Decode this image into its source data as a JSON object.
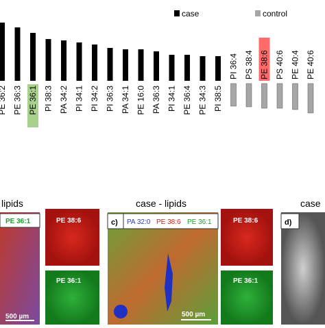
{
  "chart_data": {
    "type": "bar",
    "categories": [
      "PE 36:2",
      "PE 36:3",
      "PE 36:1",
      "PI 38:3",
      "PA 34:2",
      "PI 34:1",
      "PI 34:2",
      "PI 36:3",
      "PA 34:1",
      "PE 16:0",
      "PA 36:3",
      "PI 34:1",
      "PE 36:4",
      "PE 34:3",
      "PI 38:5",
      "PI 36:4",
      "PS 38:4",
      "PE 38:6",
      "PS 40:6",
      "PE 40:4",
      "PE 40:6"
    ],
    "series": [
      {
        "name": "case",
        "color": "#000000",
        "values": [
          85,
          78,
          70,
          61,
          59,
          56,
          53,
          48,
          46,
          46,
          43,
          38,
          38,
          36,
          36,
          null,
          null,
          null,
          null,
          null,
          null
        ]
      },
      {
        "name": "control",
        "color": "#a6a6a6",
        "values": [
          null,
          null,
          null,
          null,
          null,
          null,
          null,
          null,
          null,
          null,
          null,
          null,
          null,
          null,
          null,
          -33,
          -34,
          -36,
          -36,
          -38,
          -43
        ]
      }
    ],
    "highlight": {
      "PE 36:1": "#a9d18e",
      "PE 38:6": "#ff6b6b"
    }
  },
  "panels": {
    "left_title": "lipids",
    "middle_title": "case - lipids",
    "right_title": "case",
    "left_label": "PE 36:1",
    "small_red": "PE 38:6",
    "small_green": "PE 36:1",
    "c_tag": "c)",
    "c_labels": [
      "PA 32:0",
      "PE 38:6",
      "PE 36:1"
    ],
    "c_red": "PE 38:6",
    "c_green": "PE 36:1",
    "scale_left": "500 µm",
    "scale_mid": "500 µm",
    "d_tag": "d)"
  }
}
